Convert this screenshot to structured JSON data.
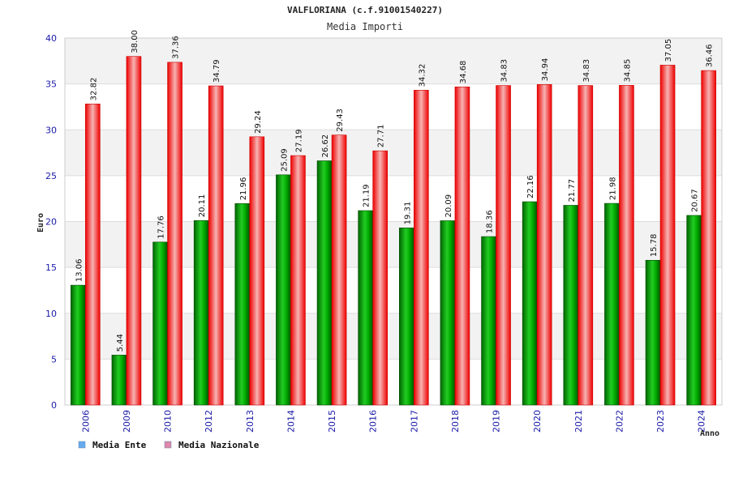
{
  "chart_data": {
    "type": "bar",
    "title": "VALFLORIANA (c.f.91001540227)",
    "subtitle": "Media Importi",
    "ylabel": "Euro",
    "xlabel": "Anno",
    "ylim": [
      0,
      40
    ],
    "yticks": [
      0,
      5,
      10,
      15,
      20,
      25,
      30,
      35,
      40
    ],
    "grid": true,
    "legend_position": "bottom-left",
    "categories": [
      "2006",
      "2009",
      "2010",
      "2012",
      "2013",
      "2014",
      "2015",
      "2016",
      "2017",
      "2018",
      "2019",
      "2020",
      "2021",
      "2022",
      "2023",
      "2024"
    ],
    "series": [
      {
        "name": "Media Ente",
        "color": "#00aa00",
        "legend_color": "#66aaee",
        "values": [
          13.06,
          5.44,
          17.76,
          20.11,
          21.96,
          25.09,
          26.62,
          21.19,
          19.31,
          20.09,
          18.36,
          22.16,
          21.77,
          21.98,
          15.78,
          20.67
        ],
        "labels": [
          "13.06",
          "5.44",
          "17.76",
          "20.11",
          "21.96",
          "25.09",
          "26.62",
          "21.19",
          "19.31",
          "20.09",
          "18.36",
          "22.16",
          "21.77",
          "21.98",
          "15.78",
          "20.67"
        ]
      },
      {
        "name": "Media Nazionale",
        "color": "#ee1111",
        "legend_color": "#dd88aa",
        "values": [
          32.82,
          38.0,
          37.36,
          34.79,
          29.24,
          27.19,
          29.43,
          27.71,
          34.32,
          34.68,
          34.83,
          34.94,
          34.83,
          34.85,
          37.05,
          36.46
        ],
        "labels": [
          "32.82",
          "38.00",
          "37.36",
          "34.79",
          "29.24",
          "27.19",
          "29.43",
          "27.71",
          "34.32",
          "34.68",
          "34.83",
          "34.94",
          "34.83",
          "34.85",
          "37.05",
          "36.46"
        ]
      }
    ]
  }
}
